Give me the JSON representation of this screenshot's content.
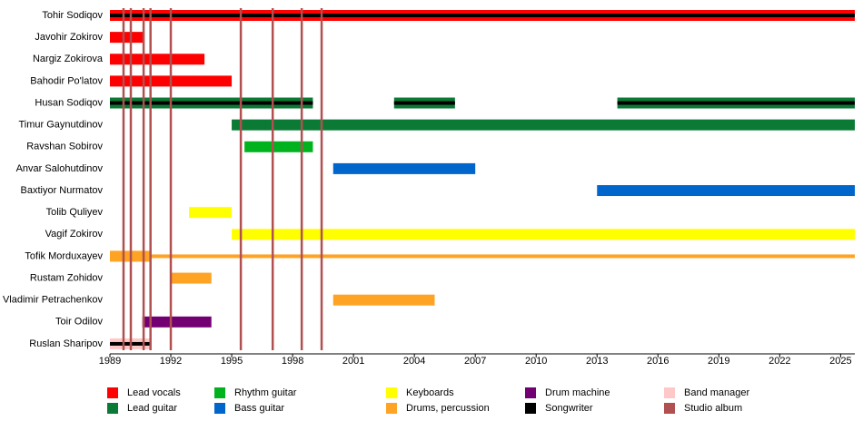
{
  "chart_data": {
    "type": "timeline",
    "xlim": [
      1989,
      2025.7
    ],
    "xticks": [
      1989,
      1992,
      1995,
      1998,
      2001,
      2004,
      2007,
      2010,
      2013,
      2016,
      2019,
      2022,
      2025
    ],
    "roles": [
      {
        "name": "Lead vocals",
        "color": "#ff0000"
      },
      {
        "name": "Lead guitar",
        "color": "#0b7a35"
      },
      {
        "name": "Rhythm guitar",
        "color": "#00b31e"
      },
      {
        "name": "Bass guitar",
        "color": "#0066cc"
      },
      {
        "name": "Keyboards",
        "color": "#ffff00"
      },
      {
        "name": "Drums, percussion",
        "color": "#ffa325"
      },
      {
        "name": "Drum machine",
        "color": "#730073"
      },
      {
        "name": "Songwriter",
        "color": "#000000"
      },
      {
        "name": "Band manager",
        "color": "#ffc8c8"
      },
      {
        "name": "Studio album",
        "color": "#b05050"
      }
    ],
    "members": [
      {
        "name": "Tohir Sodiqov",
        "periods": [
          {
            "role": "Lead vocals",
            "start": 1989,
            "end": 2025.7
          },
          {
            "role": "Songwriter",
            "start": 1989,
            "end": 2025.7
          }
        ]
      },
      {
        "name": "Javohir Zokirov",
        "periods": [
          {
            "role": "Lead vocals",
            "start": 1989,
            "end": 1990.66
          }
        ]
      },
      {
        "name": "Nargiz Zokirova",
        "periods": [
          {
            "role": "Lead vocals",
            "start": 1989,
            "end": 1993.66
          }
        ]
      },
      {
        "name": "Bahodir Po'latov",
        "periods": [
          {
            "role": "Lead vocals",
            "start": 1989,
            "end": 1995
          }
        ]
      },
      {
        "name": "Husan Sodiqov",
        "periods": [
          {
            "role": "Lead guitar",
            "start": 1989,
            "end": 1999
          },
          {
            "role": "Songwriter",
            "start": 1989,
            "end": 1999
          },
          {
            "role": "Lead guitar",
            "start": 2003,
            "end": 2006
          },
          {
            "role": "Songwriter",
            "start": 2003,
            "end": 2006
          },
          {
            "role": "Lead guitar",
            "start": 2014,
            "end": 2025.7
          },
          {
            "role": "Songwriter",
            "start": 2014,
            "end": 2025.7
          }
        ]
      },
      {
        "name": "Timur Gaynutdinov",
        "periods": [
          {
            "role": "Lead guitar",
            "start": 1995,
            "end": 2025.7
          }
        ]
      },
      {
        "name": "Ravshan Sobirov",
        "periods": [
          {
            "role": "Rhythm guitar",
            "start": 1995.63,
            "end": 1999
          }
        ]
      },
      {
        "name": "Anvar Salohutdinov",
        "periods": [
          {
            "role": "Bass guitar",
            "start": 2000,
            "end": 2007
          }
        ]
      },
      {
        "name": "Baxtiyor Nurmatov",
        "periods": [
          {
            "role": "Bass guitar",
            "start": 2013,
            "end": 2025.7
          }
        ]
      },
      {
        "name": "Tolib Quliyev",
        "periods": [
          {
            "role": "Keyboards",
            "start": 1992.9,
            "end": 1995
          }
        ]
      },
      {
        "name": "Vagif Zokirov",
        "periods": [
          {
            "role": "Keyboards",
            "start": 1995,
            "end": 2025.7
          }
        ]
      },
      {
        "name": "Tofik Morduxayev",
        "periods": [
          {
            "role": "Drums, percussion",
            "start": 1989,
            "end": 1991
          },
          {
            "role": "Drums, percussion",
            "start": 1991,
            "end": 2025.7,
            "thin": true
          }
        ]
      },
      {
        "name": "Rustam Zohidov",
        "periods": [
          {
            "role": "Drums, percussion",
            "start": 1992,
            "end": 1994
          }
        ]
      },
      {
        "name": "Vladimir Petrachenkov",
        "periods": [
          {
            "role": "Drums, percussion",
            "start": 2000,
            "end": 2005
          }
        ]
      },
      {
        "name": "Toir Odilov",
        "periods": [
          {
            "role": "Drum machine",
            "start": 1990.6,
            "end": 1994
          }
        ]
      },
      {
        "name": "Ruslan Sharipov",
        "periods": [
          {
            "role": "Band manager",
            "start": 1989,
            "end": 1991
          },
          {
            "role": "Songwriter",
            "start": 1989,
            "end": 1991
          }
        ]
      }
    ],
    "albums": [
      1989.67,
      1990.03,
      1990.66,
      1991,
      1992,
      1995.45,
      1997.02,
      1998.45,
      1999.43
    ]
  }
}
